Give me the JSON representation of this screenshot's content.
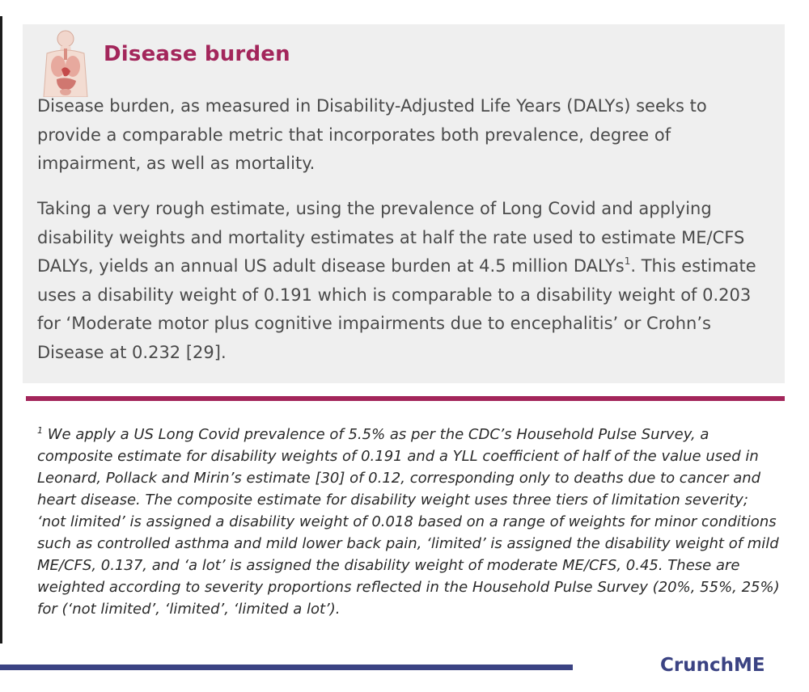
{
  "section": {
    "title": "Disease burden",
    "icon": "human-organs-icon"
  },
  "paragraphs": {
    "p1": "Disease burden, as measured in Disability-Adjusted Life Years (DALYs) seeks to provide a comparable metric that incorporates both prevalence, degree of impairment, as well as mortality.",
    "p2_before": "Taking a very rough estimate, using the prevalence of Long Covid and applying disability weights and mortality estimates at half the rate used to estimate ME/CFS DALYs, yields an annual US adult disease burden at 4.5 million DALYs",
    "p2_sup": "1",
    "p2_after": ". This estimate uses a disability weight of 0.191 which is comparable to a disability weight of 0.203 for ‘Moderate motor plus cognitive impairments due to encephalitis’ or Crohn’s Disease at 0.232 [29]."
  },
  "footnote": {
    "marker": "1",
    "text": " We apply a US Long Covid prevalence of 5.5% as per the CDC’s Household Pulse Survey, a composite estimate for disability weights of 0.191 and a YLL coefficient of half of the value used in Leonard, Pollack and Mirin’s estimate [30] of 0.12, corresponding only to deaths due to cancer and heart disease. The composite estimate for disability weight uses three tiers of limitation severity; ‘not limited’ is assigned a disability weight of 0.018 based on a range of weights for minor conditions such as controlled asthma and mild lower back pain, ‘limited’ is assigned the disability weight of mild ME/CFS, 0.137, and ‘a lot’ is assigned the disability weight of moderate ME/CFS, 0.45. These are weighted according to severity proportions reflected in the Household Pulse Survey (20%, 55%, 25%) for (‘not limited’, ‘limited’, ‘limited a lot’)."
  },
  "brand": "CrunchME",
  "colors": {
    "accent": "#a3265b",
    "brand": "#3b4383",
    "panel": "#efefef"
  }
}
